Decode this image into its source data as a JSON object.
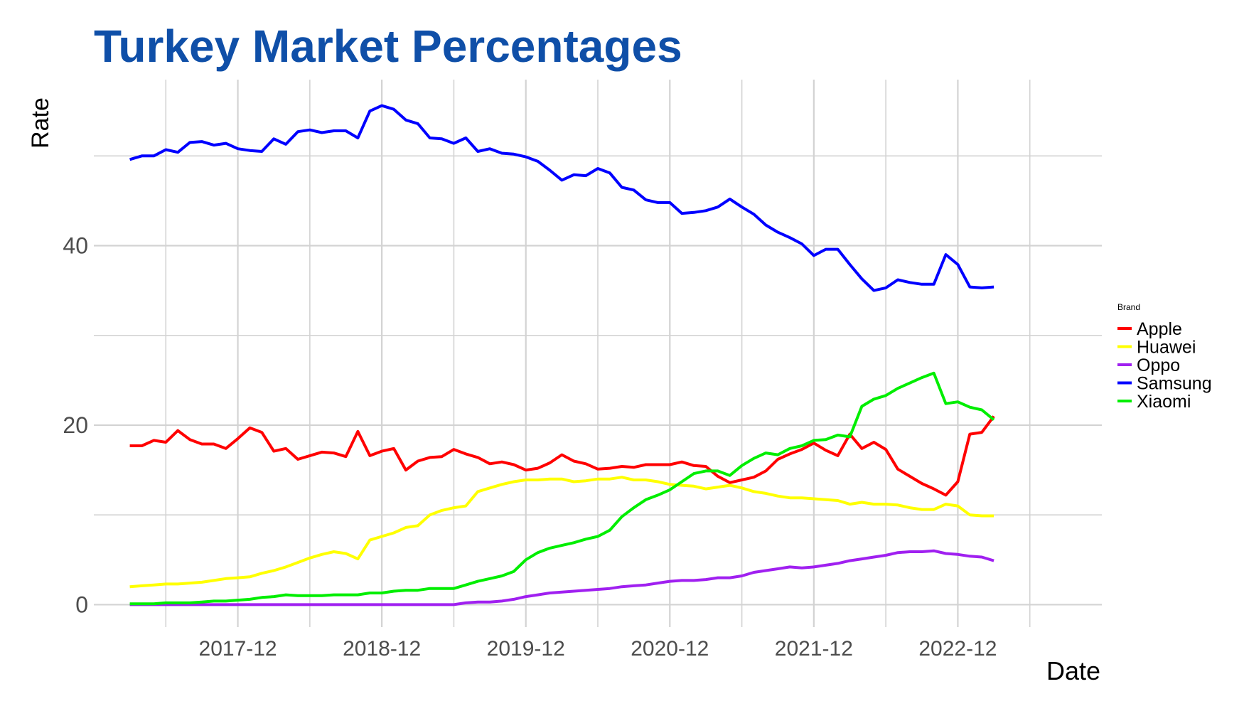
{
  "chart_data": {
    "type": "line",
    "title": "Turkey Market Percentages",
    "xlabel": "Date",
    "ylabel": "Rate",
    "legend_title": "Brand",
    "legend_position": "right",
    "grid": true,
    "start_month": "2017-03",
    "xlim": [
      "2016-12",
      "2023-12"
    ],
    "ylim": [
      -2.5,
      58.5
    ],
    "x_ticks": [
      "2017-12",
      "2018-12",
      "2019-12",
      "2020-12",
      "2021-12",
      "2022-12"
    ],
    "y_ticks": [
      0,
      20,
      40
    ],
    "series": [
      {
        "name": "Apple",
        "color": "#ff0000",
        "values": [
          17.7,
          17.7,
          18.3,
          18.1,
          19.4,
          18.4,
          17.9,
          17.9,
          17.4,
          18.5,
          19.7,
          19.2,
          17.1,
          17.4,
          16.2,
          16.6,
          17.0,
          16.9,
          16.5,
          19.3,
          16.6,
          17.1,
          17.4,
          15.0,
          16.0,
          16.4,
          16.5,
          17.3,
          16.8,
          16.4,
          15.7,
          15.9,
          15.6,
          15.0,
          15.2,
          15.8,
          16.7,
          16.0,
          15.7,
          15.1,
          15.2,
          15.4,
          15.3,
          15.6,
          15.6,
          15.6,
          15.9,
          15.5,
          15.4,
          14.3,
          13.6,
          13.9,
          14.2,
          14.9,
          16.2,
          16.8,
          17.3,
          18.0,
          17.2,
          16.6,
          19.0,
          17.4,
          18.1,
          17.3,
          15.1,
          14.3,
          13.5,
          12.9,
          12.2,
          13.7,
          19.0,
          19.2,
          21.0
        ]
      },
      {
        "name": "Huawei",
        "color": "#ffff00",
        "values": [
          2.0,
          2.1,
          2.2,
          2.3,
          2.3,
          2.4,
          2.5,
          2.7,
          2.9,
          3.0,
          3.1,
          3.5,
          3.8,
          4.2,
          4.7,
          5.2,
          5.6,
          5.9,
          5.7,
          5.1,
          7.2,
          7.6,
          8.0,
          8.6,
          8.8,
          10.0,
          10.5,
          10.8,
          11.0,
          12.6,
          13.0,
          13.4,
          13.7,
          13.9,
          13.9,
          14.0,
          14.0,
          13.7,
          13.8,
          14.0,
          14.0,
          14.2,
          13.9,
          13.9,
          13.7,
          13.4,
          13.3,
          13.2,
          12.9,
          13.1,
          13.3,
          13.0,
          12.6,
          12.4,
          12.1,
          11.9,
          11.9,
          11.8,
          11.7,
          11.6,
          11.2,
          11.4,
          11.2,
          11.2,
          11.1,
          10.8,
          10.6,
          10.6,
          11.2,
          11.0,
          10.0,
          9.9,
          9.9
        ]
      },
      {
        "name": "Oppo",
        "color": "#a020f0",
        "values": [
          0,
          0,
          0,
          0,
          0,
          0,
          0,
          0,
          0,
          0,
          0,
          0,
          0,
          0,
          0,
          0,
          0,
          0,
          0,
          0,
          0,
          0,
          0,
          0,
          0,
          0,
          0,
          0,
          0.2,
          0.3,
          0.3,
          0.4,
          0.6,
          0.9,
          1.1,
          1.3,
          1.4,
          1.5,
          1.6,
          1.7,
          1.8,
          2.0,
          2.1,
          2.2,
          2.4,
          2.6,
          2.7,
          2.7,
          2.8,
          3.0,
          3.0,
          3.2,
          3.6,
          3.8,
          4.0,
          4.2,
          4.1,
          4.2,
          4.4,
          4.6,
          4.9,
          5.1,
          5.3,
          5.5,
          5.8,
          5.9,
          5.9,
          6.0,
          5.7,
          5.6,
          5.4,
          5.3,
          4.9
        ]
      },
      {
        "name": "Samsung",
        "color": "#0000ff",
        "values": [
          49.6,
          50.0,
          50.0,
          50.7,
          50.4,
          51.5,
          51.6,
          51.2,
          51.4,
          50.8,
          50.6,
          50.5,
          51.9,
          51.3,
          52.7,
          52.9,
          52.6,
          52.8,
          52.8,
          52.0,
          55.0,
          55.6,
          55.2,
          54.0,
          53.6,
          52.0,
          51.9,
          51.4,
          52.0,
          50.5,
          50.8,
          50.3,
          50.2,
          49.9,
          49.4,
          48.4,
          47.3,
          47.9,
          47.8,
          48.6,
          48.1,
          46.5,
          46.2,
          45.1,
          44.8,
          44.8,
          43.6,
          43.7,
          43.9,
          44.3,
          45.2,
          44.3,
          43.5,
          42.3,
          41.5,
          40.9,
          40.2,
          38.9,
          39.6,
          39.6,
          37.9,
          36.3,
          35.0,
          35.3,
          36.2,
          35.9,
          35.7,
          35.7,
          39.0,
          37.9,
          35.4,
          35.3,
          35.4
        ]
      },
      {
        "name": "Xiaomi",
        "color": "#00ee00",
        "values": [
          0.1,
          0.1,
          0.1,
          0.2,
          0.2,
          0.2,
          0.3,
          0.4,
          0.4,
          0.5,
          0.6,
          0.8,
          0.9,
          1.1,
          1.0,
          1.0,
          1.0,
          1.1,
          1.1,
          1.1,
          1.3,
          1.3,
          1.5,
          1.6,
          1.6,
          1.8,
          1.8,
          1.8,
          2.2,
          2.6,
          2.9,
          3.2,
          3.7,
          5.0,
          5.8,
          6.3,
          6.6,
          6.9,
          7.3,
          7.6,
          8.3,
          9.8,
          10.8,
          11.7,
          12.2,
          12.8,
          13.7,
          14.6,
          14.9,
          14.9,
          14.4,
          15.5,
          16.3,
          16.9,
          16.7,
          17.4,
          17.7,
          18.3,
          18.4,
          18.9,
          18.7,
          22.1,
          22.9,
          23.3,
          24.1,
          24.7,
          25.3,
          25.8,
          22.4,
          22.6,
          22.0,
          21.7,
          20.6
        ]
      }
    ]
  }
}
